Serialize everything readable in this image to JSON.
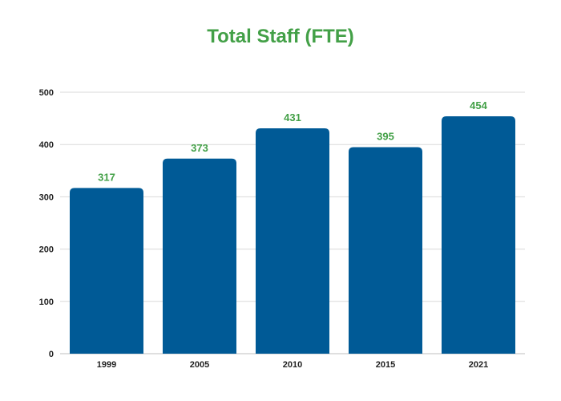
{
  "chart_data": {
    "type": "bar",
    "title": "Total Staff (FTE)",
    "xlabel": "",
    "ylabel": "",
    "categories": [
      "1999",
      "2005",
      "2010",
      "2015",
      "2021"
    ],
    "values": [
      317,
      373,
      431,
      395,
      454
    ],
    "ylim": [
      0,
      500
    ],
    "yticks": [
      0,
      100,
      200,
      300,
      400,
      500
    ],
    "grid": true,
    "data_labels": true,
    "colors": {
      "bar": "#005A96",
      "title": "#43A047",
      "data_label": "#43A047",
      "grid": "#D9D9D9"
    }
  }
}
